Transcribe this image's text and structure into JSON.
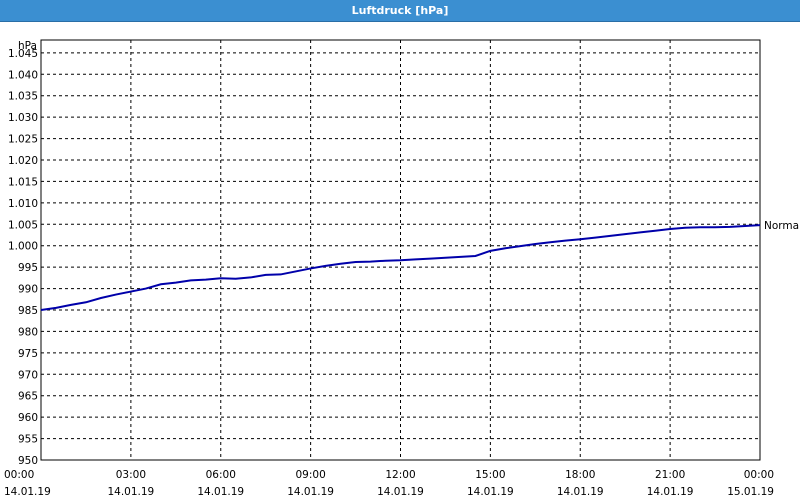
{
  "window": {
    "title": "Luftdruck [hPa]"
  },
  "chart_data": {
    "type": "line",
    "title": "Luftdruck [hPa]",
    "ylabel": "hPa",
    "ylim": [
      950,
      1048
    ],
    "y_ticks": [
      "950",
      "955",
      "960",
      "965",
      "970",
      "975",
      "980",
      "985",
      "990",
      "995",
      "1.000",
      "1.005",
      "1.010",
      "1.015",
      "1.020",
      "1.025",
      "1.030",
      "1.035",
      "1.040",
      "1.045"
    ],
    "x_ticks": [
      {
        "time": "00:00",
        "date": "14.01.19"
      },
      {
        "time": "03:00",
        "date": "14.01.19"
      },
      {
        "time": "06:00",
        "date": "14.01.19"
      },
      {
        "time": "09:00",
        "date": "14.01.19"
      },
      {
        "time": "12:00",
        "date": "14.01.19"
      },
      {
        "time": "15:00",
        "date": "14.01.19"
      },
      {
        "time": "18:00",
        "date": "14.01.19"
      },
      {
        "time": "21:00",
        "date": "14.01.19"
      },
      {
        "time": "00:00",
        "date": "15.01.19"
      }
    ],
    "grid": true,
    "series": [
      {
        "name": "Normal",
        "color": "#0000aa",
        "x": [
          "00:00",
          "00:30",
          "01:00",
          "01:30",
          "02:00",
          "02:30",
          "03:00",
          "03:30",
          "04:00",
          "04:30",
          "05:00",
          "05:30",
          "06:00",
          "06:30",
          "07:00",
          "07:30",
          "08:00",
          "08:30",
          "09:00",
          "09:30",
          "10:00",
          "10:30",
          "11:00",
          "11:30",
          "12:00",
          "12:30",
          "13:00",
          "13:30",
          "14:00",
          "14:30",
          "15:00",
          "15:30",
          "16:00",
          "16:30",
          "17:00",
          "17:30",
          "18:00",
          "18:30",
          "19:00",
          "19:30",
          "20:00",
          "20:30",
          "21:00",
          "21:30",
          "22:00",
          "22:30",
          "23:00",
          "23:30",
          "24:00"
        ],
        "values": [
          985.0,
          985.5,
          986.2,
          986.8,
          987.8,
          988.6,
          989.3,
          990.0,
          991.0,
          991.4,
          991.9,
          992.1,
          992.4,
          992.3,
          992.6,
          993.2,
          993.3,
          994.0,
          994.7,
          995.3,
          995.8,
          996.2,
          996.3,
          996.5,
          996.6,
          996.8,
          997.0,
          997.2,
          997.4,
          997.6,
          998.8,
          999.4,
          999.9,
          1000.4,
          1000.8,
          1001.2,
          1001.5,
          1001.9,
          1002.3,
          1002.7,
          1003.1,
          1003.5,
          1003.9,
          1004.2,
          1004.3,
          1004.3,
          1004.4,
          1004.6,
          1004.8
        ]
      }
    ]
  }
}
